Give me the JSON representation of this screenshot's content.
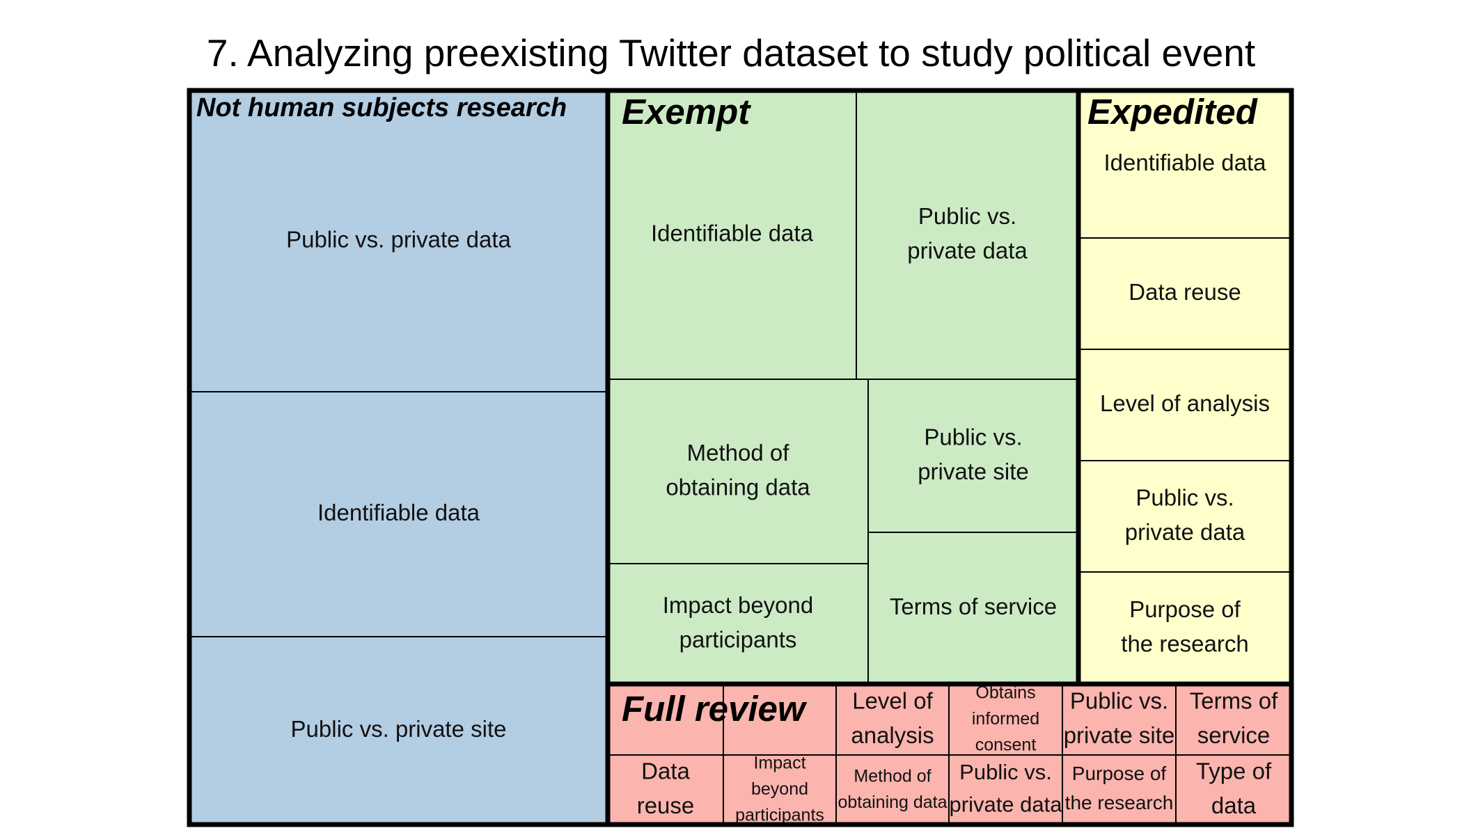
{
  "chart_data": {
    "type": "treemap",
    "title": "7. Analyzing preexisting Twitter dataset to study political event",
    "groups": [
      {
        "name": "Not human subjects research",
        "color": "#b3cde3",
        "cells": [
          {
            "label": "Public vs. private data"
          },
          {
            "label": "Identifiable data"
          },
          {
            "label": "Public vs. private site"
          }
        ]
      },
      {
        "name": "Exempt",
        "color": "#ccebc5",
        "cells": [
          {
            "label": "Identifiable data"
          },
          {
            "label": "Public vs.\nprivate data"
          },
          {
            "label": "Method of\nobtaining data"
          },
          {
            "label": "Public vs.\nprivate site"
          },
          {
            "label": "Impact beyond\nparticipants"
          },
          {
            "label": "Terms of service"
          }
        ]
      },
      {
        "name": "Expedited",
        "color": "#ffffcc",
        "cells": [
          {
            "label": "Identifiable data"
          },
          {
            "label": "Data reuse"
          },
          {
            "label": "Level of analysis"
          },
          {
            "label": "Public vs.\nprivate data"
          },
          {
            "label": "Purpose of\nthe research"
          }
        ]
      },
      {
        "name": "Full review",
        "color": "#fbb4ae",
        "cells": [
          {
            "label": ""
          },
          {
            "label": ""
          },
          {
            "label": "Level of\nanalysis"
          },
          {
            "label": "Obtains\ninformed\nconsent"
          },
          {
            "label": "Public vs.\nprivate site"
          },
          {
            "label": "Terms of\nservice"
          },
          {
            "label": "Data\nreuse"
          },
          {
            "label": "Impact\nbeyond\nparticipants"
          },
          {
            "label": "Method of\nobtaining data"
          },
          {
            "label": "Public vs.\nprivate data"
          },
          {
            "label": "Purpose of\nthe research"
          },
          {
            "label": "Type of\ndata"
          }
        ]
      }
    ]
  }
}
